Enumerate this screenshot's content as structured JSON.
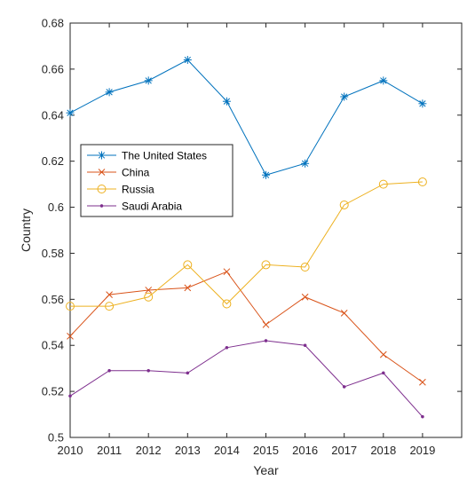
{
  "chart_data": {
    "type": "line",
    "title": "",
    "xlabel": "Year",
    "ylabel": "Country",
    "x": [
      2010,
      2011,
      2012,
      2013,
      2014,
      2015,
      2016,
      2017,
      2018,
      2019
    ],
    "xlim": [
      2010,
      2020
    ],
    "ylim": [
      0.5,
      0.68
    ],
    "x_ticks": [
      "2010",
      "2011",
      "2012",
      "2013",
      "2014",
      "2015",
      "2016",
      "2017",
      "2018",
      "2019"
    ],
    "y_ticks": [
      "0.5",
      "0.52",
      "0.54",
      "0.56",
      "0.58",
      "0.6",
      "0.62",
      "0.64",
      "0.66",
      "0.68"
    ],
    "grid": false,
    "legend_position": "middle-left",
    "series": [
      {
        "name": "The United States",
        "color": "#0072BD",
        "marker": "asterisk",
        "values": [
          0.641,
          0.65,
          0.655,
          0.664,
          0.646,
          0.614,
          0.619,
          0.648,
          0.655,
          0.645
        ]
      },
      {
        "name": "China",
        "color": "#D95319",
        "marker": "x",
        "values": [
          0.544,
          0.562,
          0.564,
          0.565,
          0.572,
          0.549,
          0.561,
          0.554,
          0.536,
          0.524
        ]
      },
      {
        "name": "Russia",
        "color": "#EDB120",
        "marker": "circle",
        "values": [
          0.557,
          0.557,
          0.561,
          0.575,
          0.558,
          0.575,
          0.574,
          0.601,
          0.61,
          0.611
        ]
      },
      {
        "name": "Saudi Arabia",
        "color": "#7E2F8E",
        "marker": "dot",
        "values": [
          0.518,
          0.529,
          0.529,
          0.528,
          0.539,
          0.542,
          0.54,
          0.522,
          0.528,
          0.509
        ]
      }
    ]
  }
}
